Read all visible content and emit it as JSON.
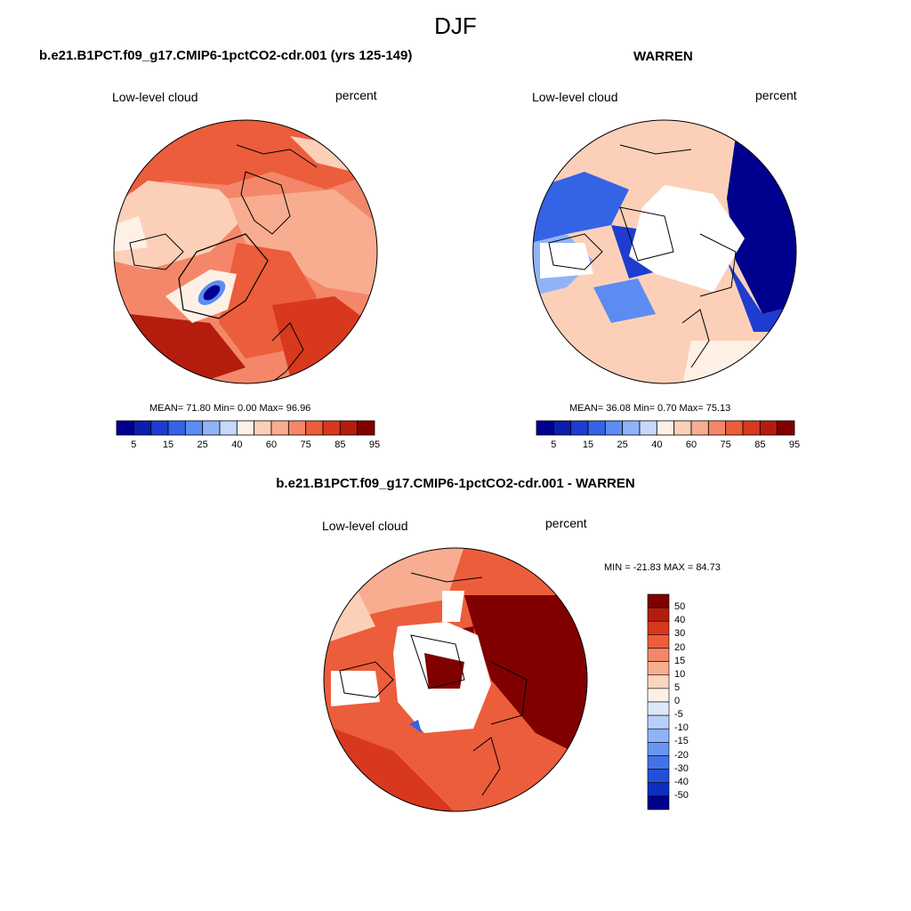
{
  "title": "DJF",
  "colors": {
    "scale_main": [
      "#00008f",
      "#0a1fb0",
      "#1e3ccf",
      "#3563e6",
      "#5c8cf2",
      "#90b3f8",
      "#c7d9fb",
      "#fff0e6",
      "#fcd0b8",
      "#f9ad90",
      "#f4876a",
      "#ec5d3b",
      "#d8381e",
      "#b41d0e",
      "#800000"
    ],
    "scale_diff": [
      "#800000",
      "#b31d0e",
      "#d8381e",
      "#ec5d3b",
      "#f4876a",
      "#f9ad90",
      "#fcd5bf",
      "#fff0e6",
      "#dde9fb",
      "#b8cff8",
      "#90b3f8",
      "#6a95f1",
      "#4373e8",
      "#2250d8",
      "#0c2fbf",
      "#00008f"
    ],
    "outline": "#000000"
  },
  "panels": [
    {
      "title": "b.e21.B1PCT.f09_g17.CMIP6-1pctCO2-cdr.001 (yrs 125-149)",
      "left_label": "Low-level cloud",
      "right_label": "percent",
      "stats": "MEAN=  71.80  Min=   0.00  Max=  96.96"
    },
    {
      "title": "WARREN",
      "left_label": "Low-level cloud",
      "right_label": "percent",
      "stats": "MEAN=  36.08  Min=   0.70  Max=  75.13"
    },
    {
      "title": "b.e21.B1PCT.f09_g17.CMIP6-1pctCO2-cdr.001 - WARREN",
      "left_label": "Low-level cloud",
      "right_label": "percent",
      "stats": "MIN = -21.83 MAX =  84.73"
    }
  ],
  "chart_data": [
    {
      "type": "heatmap",
      "projection": "north polar stereographic",
      "title": "b.e21.B1PCT.f09_g17.CMIP6-1pctCO2-cdr.001 (yrs 125-149)",
      "variable": "Low-level cloud",
      "units": "percent",
      "mean": 71.8,
      "min": 0.0,
      "max": 96.96,
      "colorbar_levels": [
        5,
        10,
        15,
        20,
        25,
        30,
        40,
        50,
        60,
        70,
        75,
        80,
        85,
        90,
        95
      ],
      "colorbar_tick_labels": [
        "5",
        "15",
        "25",
        "40",
        "60",
        "75",
        "85",
        "95"
      ]
    },
    {
      "type": "heatmap",
      "projection": "north polar stereographic",
      "title": "WARREN",
      "variable": "Low-level cloud",
      "units": "percent",
      "mean": 36.08,
      "min": 0.7,
      "max": 75.13,
      "colorbar_levels": [
        5,
        10,
        15,
        20,
        25,
        30,
        40,
        50,
        60,
        70,
        75,
        80,
        85,
        90,
        95
      ],
      "colorbar_tick_labels": [
        "5",
        "15",
        "25",
        "40",
        "60",
        "75",
        "85",
        "95"
      ]
    },
    {
      "type": "heatmap",
      "projection": "north polar stereographic",
      "title": "b.e21.B1PCT.f09_g17.CMIP6-1pctCO2-cdr.001 - WARREN",
      "variable": "Low-level cloud",
      "units": "percent",
      "min": -21.83,
      "max": 84.73,
      "colorbar_levels": [
        50,
        40,
        30,
        20,
        15,
        10,
        5,
        0,
        -5,
        -10,
        -15,
        -20,
        -30,
        -40,
        -50
      ],
      "colorbar_tick_labels": [
        "50",
        "40",
        "30",
        "20",
        "15",
        "10",
        "5",
        "0",
        "-5",
        "-10",
        "-15",
        "-20",
        "-30",
        "-40",
        "-50"
      ]
    }
  ]
}
